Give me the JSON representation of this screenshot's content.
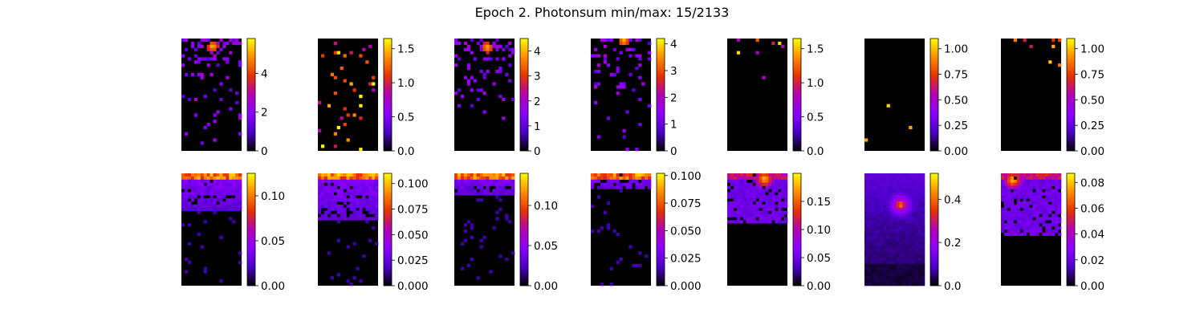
{
  "title": "Epoch 2. Photonsum min/max: 15/2133",
  "colormap": "gnuplot",
  "colors": {
    "stops": [
      "#000000",
      "#4b00c8",
      "#8c00ff",
      "#b400b4",
      "#e63200",
      "#ff8c00",
      "#ffff00"
    ],
    "background": "#ffffff"
  },
  "chart_data": [
    {
      "type": "heatmap",
      "row": 1,
      "col": 1,
      "title": "",
      "xlabel": "",
      "ylabel": "",
      "vmin": 0,
      "vmax": 5.8,
      "colorbar_ticks": [
        0,
        2,
        4
      ],
      "colorbar_tick_labels": [
        "0",
        "2",
        "4"
      ],
      "pattern": {
        "kind": "sparse_hotspot",
        "hotspot": [
          0.52,
          0.07
        ],
        "density": 0.32,
        "seed": 11
      }
    },
    {
      "type": "heatmap",
      "row": 1,
      "col": 2,
      "title": "",
      "xlabel": "",
      "ylabel": "",
      "vmin": 0,
      "vmax": 1.65,
      "colorbar_ticks": [
        0.0,
        0.5,
        1.0,
        1.5
      ],
      "colorbar_tick_labels": [
        "0.0",
        "0.5",
        "1.0",
        "1.5"
      ],
      "pattern": {
        "kind": "sparse_random",
        "density": 0.06,
        "seed": 23
      }
    },
    {
      "type": "heatmap",
      "row": 1,
      "col": 3,
      "title": "",
      "xlabel": "",
      "ylabel": "",
      "vmin": 0,
      "vmax": 4.5,
      "colorbar_ticks": [
        0,
        1,
        2,
        3,
        4
      ],
      "colorbar_tick_labels": [
        "0",
        "1",
        "2",
        "3",
        "4"
      ],
      "pattern": {
        "kind": "sparse_hotspot",
        "hotspot": [
          0.55,
          0.08
        ],
        "density": 0.34,
        "seed": 37
      }
    },
    {
      "type": "heatmap",
      "row": 1,
      "col": 4,
      "title": "",
      "xlabel": "",
      "ylabel": "",
      "vmin": 0,
      "vmax": 4.2,
      "colorbar_ticks": [
        0,
        1,
        2,
        3,
        4
      ],
      "colorbar_tick_labels": [
        "0",
        "1",
        "2",
        "3",
        "4"
      ],
      "pattern": {
        "kind": "sparse_hotspot",
        "hotspot": [
          0.55,
          0.02
        ],
        "density": 0.3,
        "seed": 41
      }
    },
    {
      "type": "heatmap",
      "row": 1,
      "col": 5,
      "title": "",
      "xlabel": "",
      "ylabel": "",
      "vmin": 0,
      "vmax": 1.65,
      "colorbar_ticks": [
        0.0,
        0.5,
        1.0,
        1.5
      ],
      "colorbar_tick_labels": [
        "0.0",
        "0.5",
        "1.0",
        "1.5"
      ],
      "pattern": {
        "kind": "sparse_top",
        "density": 0.05,
        "seed": 53
      }
    },
    {
      "type": "heatmap",
      "row": 1,
      "col": 6,
      "title": "",
      "xlabel": "",
      "ylabel": "",
      "vmin": 0,
      "vmax": 1.1,
      "colorbar_ticks": [
        0.0,
        0.25,
        0.5,
        0.75,
        1.0
      ],
      "colorbar_tick_labels": [
        "0.00",
        "0.25",
        "0.50",
        "0.75",
        "1.00"
      ],
      "pattern": {
        "kind": "sparse_random",
        "density": 0.012,
        "seed": 67
      }
    },
    {
      "type": "heatmap",
      "row": 1,
      "col": 7,
      "title": "",
      "xlabel": "",
      "ylabel": "",
      "vmin": 0,
      "vmax": 1.1,
      "colorbar_ticks": [
        0.0,
        0.25,
        0.5,
        0.75,
        1.0
      ],
      "colorbar_tick_labels": [
        "0.00",
        "0.25",
        "0.50",
        "0.75",
        "1.00"
      ],
      "pattern": {
        "kind": "sparse_top",
        "density": 0.06,
        "seed": 79
      }
    },
    {
      "type": "heatmap",
      "row": 2,
      "col": 1,
      "title": "",
      "xlabel": "",
      "ylabel": "",
      "vmin": 0,
      "vmax": 0.125,
      "colorbar_ticks": [
        0.0,
        0.05,
        0.1
      ],
      "colorbar_tick_labels": [
        "0.00",
        "0.05",
        "0.10"
      ],
      "pattern": {
        "kind": "smooth_top",
        "band": 0.32,
        "seed": 83
      }
    },
    {
      "type": "heatmap",
      "row": 2,
      "col": 2,
      "title": "",
      "xlabel": "",
      "ylabel": "",
      "vmin": 0,
      "vmax": 0.11,
      "colorbar_ticks": [
        0.0,
        0.025,
        0.05,
        0.075,
        0.1
      ],
      "colorbar_tick_labels": [
        "0.000",
        "0.025",
        "0.050",
        "0.075",
        "0.100"
      ],
      "pattern": {
        "kind": "smooth_top",
        "band": 0.42,
        "seed": 97
      }
    },
    {
      "type": "heatmap",
      "row": 2,
      "col": 3,
      "title": "",
      "xlabel": "",
      "ylabel": "",
      "vmin": 0,
      "vmax": 0.14,
      "colorbar_ticks": [
        0.0,
        0.05,
        0.1
      ],
      "colorbar_tick_labels": [
        "0.00",
        "0.05",
        "0.10"
      ],
      "pattern": {
        "kind": "smooth_top",
        "band": 0.2,
        "seed": 101
      }
    },
    {
      "type": "heatmap",
      "row": 2,
      "col": 4,
      "title": "",
      "xlabel": "",
      "ylabel": "",
      "vmin": 0,
      "vmax": 0.102,
      "colorbar_ticks": [
        0.0,
        0.025,
        0.05,
        0.075,
        0.1
      ],
      "colorbar_tick_labels": [
        "0.000",
        "0.025",
        "0.050",
        "0.075",
        "0.100"
      ],
      "pattern": {
        "kind": "smooth_top",
        "band": 0.15,
        "seed": 113
      }
    },
    {
      "type": "heatmap",
      "row": 2,
      "col": 5,
      "title": "",
      "xlabel": "",
      "ylabel": "",
      "vmin": 0,
      "vmax": 0.2,
      "colorbar_ticks": [
        0.0,
        0.05,
        0.1,
        0.15
      ],
      "colorbar_tick_labels": [
        "0.00",
        "0.05",
        "0.10",
        "0.15"
      ],
      "pattern": {
        "kind": "smooth_spot",
        "hotspot": [
          0.62,
          0.05
        ],
        "band": 0.45,
        "seed": 127
      }
    },
    {
      "type": "heatmap",
      "row": 2,
      "col": 6,
      "title": "",
      "xlabel": "",
      "ylabel": "",
      "vmin": 0,
      "vmax": 0.52,
      "colorbar_ticks": [
        0.0,
        0.2,
        0.4
      ],
      "colorbar_tick_labels": [
        "0.0",
        "0.2",
        "0.4"
      ],
      "pattern": {
        "kind": "blob",
        "hotspot": [
          0.6,
          0.28
        ],
        "band": 0.9,
        "seed": 131
      }
    },
    {
      "type": "heatmap",
      "row": 2,
      "col": 7,
      "title": "",
      "xlabel": "",
      "ylabel": "",
      "vmin": 0,
      "vmax": 0.087,
      "colorbar_ticks": [
        0.0,
        0.02,
        0.04,
        0.06,
        0.08
      ],
      "colorbar_tick_labels": [
        "0.00",
        "0.02",
        "0.04",
        "0.06",
        "0.08"
      ],
      "pattern": {
        "kind": "smooth_spot",
        "hotspot": [
          0.2,
          0.06
        ],
        "band": 0.55,
        "seed": 139
      }
    }
  ]
}
